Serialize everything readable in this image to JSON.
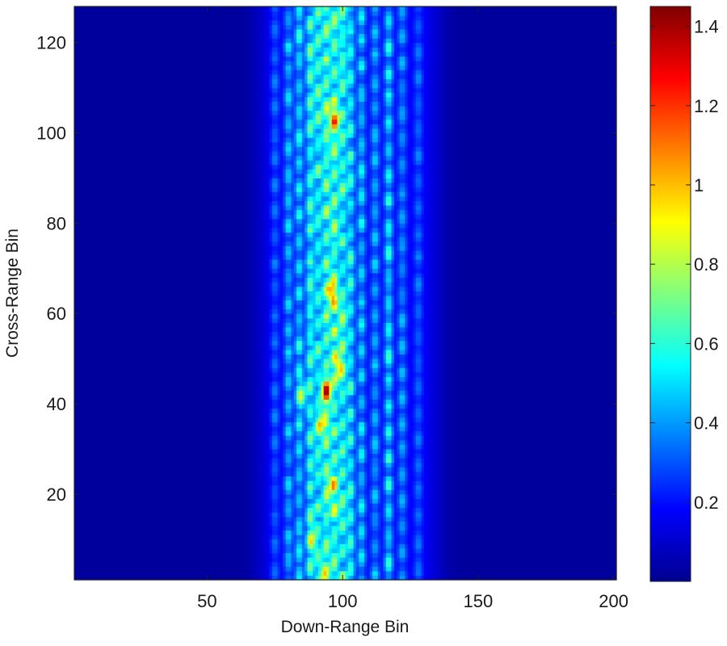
{
  "chart_data": {
    "type": "heatmap",
    "title": "",
    "xlabel": "Down-Range Bin",
    "ylabel": "Cross-Range Bin",
    "xlim": [
      1,
      201
    ],
    "ylim": [
      1,
      128
    ],
    "x_ticks": [
      50,
      100,
      150,
      200
    ],
    "x_tick_labels": [
      "50",
      "100",
      "150",
      "200"
    ],
    "y_ticks": [
      20,
      40,
      60,
      80,
      100,
      120
    ],
    "y_tick_labels": [
      "20",
      "40",
      "60",
      "80",
      "100",
      "120"
    ],
    "colormap": "jet",
    "color_limits": [
      0,
      1.45
    ],
    "colorbar_ticks": [
      0.2,
      0.4,
      0.6,
      0.8,
      1,
      1.2,
      1.4
    ],
    "colorbar_tick_labels": [
      "0.2",
      "0.4",
      "0.6",
      "0.8",
      "1",
      "1.2",
      "1.4"
    ],
    "colorbar_placement": "right",
    "grid": false,
    "background_level": 0.04,
    "target_band": {
      "x_start": 70,
      "x_end": 135,
      "level": 0.14
    },
    "stripes": [
      {
        "x": 75,
        "level": 0.3
      },
      {
        "x": 80,
        "level": 0.5
      },
      {
        "x": 84,
        "level": 0.62
      },
      {
        "x": 88,
        "level": 0.82
      },
      {
        "x": 91,
        "level": 0.78
      },
      {
        "x": 94,
        "level": 0.95
      },
      {
        "x": 97,
        "level": 1.0
      },
      {
        "x": 100,
        "level": 0.85
      },
      {
        "x": 103,
        "level": 0.7
      },
      {
        "x": 107,
        "level": 0.55
      },
      {
        "x": 112,
        "level": 0.45
      },
      {
        "x": 117,
        "level": 0.65
      },
      {
        "x": 122,
        "level": 0.4
      },
      {
        "x": 128,
        "level": 0.3
      }
    ],
    "peaks": [
      {
        "x": 94,
        "y": 43,
        "value": 1.45
      },
      {
        "x": 97,
        "y": 103,
        "value": 1.15
      },
      {
        "x": 96,
        "y": 65,
        "value": 1.2
      },
      {
        "x": 85,
        "y": 42,
        "value": 1.1
      },
      {
        "x": 99,
        "y": 48,
        "value": 1.15
      },
      {
        "x": 89,
        "y": 10,
        "value": 1.0
      },
      {
        "x": 93,
        "y": 2,
        "value": 1.05
      },
      {
        "x": 96,
        "y": 22,
        "value": 0.95
      },
      {
        "x": 92,
        "y": 36,
        "value": 1.1
      },
      {
        "x": 100,
        "y": 60,
        "value": 0.9
      }
    ]
  }
}
